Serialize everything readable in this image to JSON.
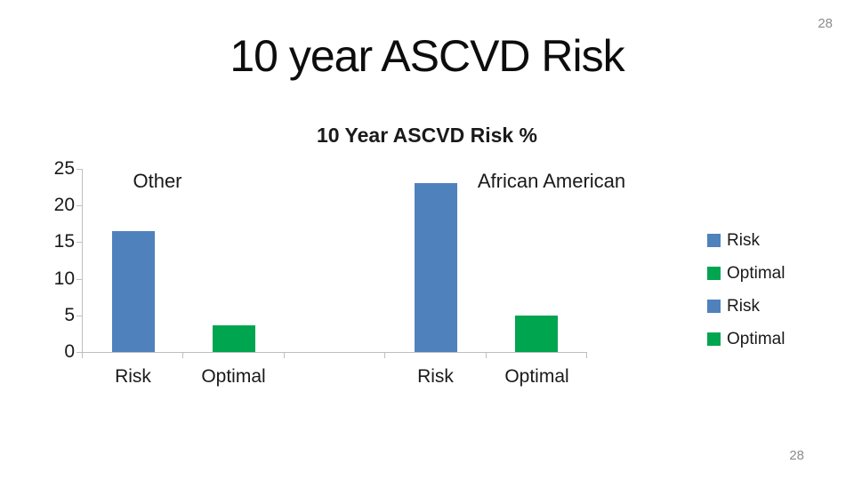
{
  "slide": {
    "title": "10 year ASCVD Risk",
    "page_number_top": "28",
    "page_number_bottom": "28"
  },
  "chart_data": {
    "type": "bar",
    "title": "10 Year ASCVD Risk %",
    "ylim": [
      0,
      25
    ],
    "y_ticks": [
      25,
      20,
      15,
      10,
      5,
      0
    ],
    "grid": false,
    "legend_position": "right",
    "colors": {
      "risk_blue": "#4f81bd",
      "optimal_green": "#00a550",
      "axis_gray": "#bfbfbf"
    },
    "slots": [
      "Risk",
      "Optimal",
      "",
      "Risk",
      "Optimal"
    ],
    "groups": [
      {
        "label": "Other",
        "bars": [
          {
            "category": "Risk",
            "value": 16.5,
            "color": "#4f81bd"
          },
          {
            "category": "Optimal",
            "value": 3.6,
            "color": "#00a550"
          }
        ]
      },
      {
        "label": "African American",
        "bars": [
          {
            "category": "Risk",
            "value": 23.0,
            "color": "#4f81bd"
          },
          {
            "category": "Optimal",
            "value": 5.0,
            "color": "#00a550"
          }
        ]
      }
    ],
    "legend": [
      {
        "label": "Risk",
        "color": "#4f81bd"
      },
      {
        "label": "Optimal",
        "color": "#00a550"
      },
      {
        "label": "Risk",
        "color": "#4f81bd"
      },
      {
        "label": "Optimal",
        "color": "#00a550"
      }
    ]
  }
}
